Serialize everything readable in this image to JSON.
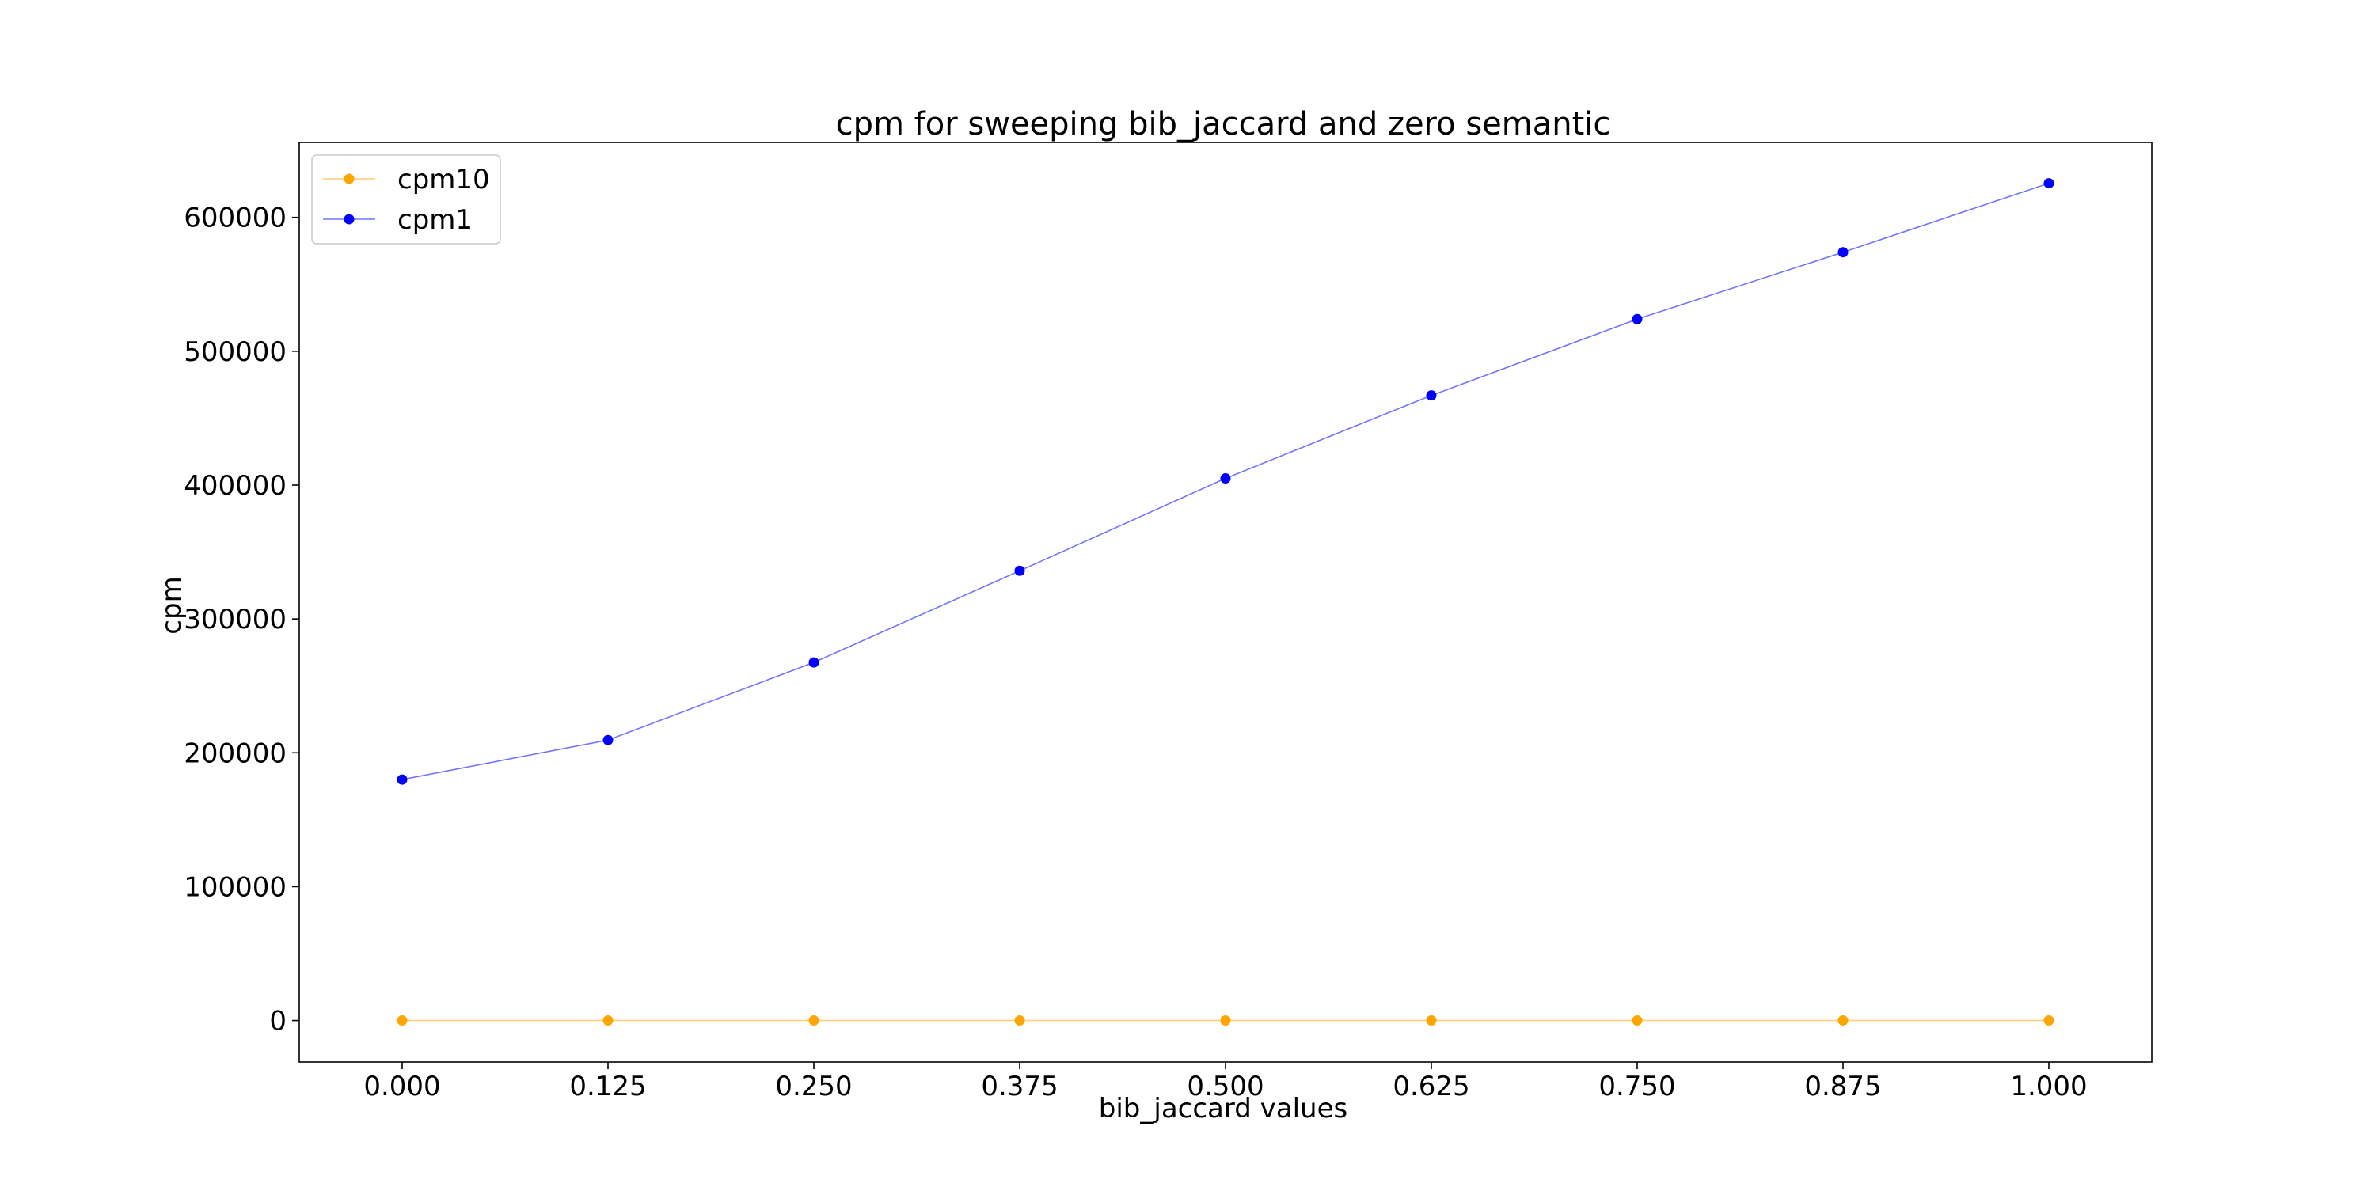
{
  "chart_data": {
    "type": "line",
    "title": "cpm for sweeping bib_jaccard and zero semantic",
    "xlabel": "bib_jaccard values",
    "ylabel": "cpm",
    "x": [
      0.0,
      0.125,
      0.25,
      0.375,
      0.5,
      0.625,
      0.75,
      0.875,
      1.0
    ],
    "xticks": [
      "0.000",
      "0.125",
      "0.250",
      "0.375",
      "0.500",
      "0.625",
      "0.750",
      "0.875",
      "1.000"
    ],
    "yticks": [
      "0",
      "100000",
      "200000",
      "300000",
      "400000",
      "500000",
      "600000"
    ],
    "ytick_values": [
      0,
      100000,
      200000,
      300000,
      400000,
      500000,
      600000
    ],
    "xlim": [
      -0.0625,
      1.0625
    ],
    "ylim": [
      -31000,
      656000
    ],
    "grid": false,
    "legend_position": "upper-left",
    "series": [
      {
        "name": "cpm10",
        "color": "#ffa500",
        "values": [
          10,
          10,
          10,
          10,
          10,
          10,
          10,
          10,
          10
        ]
      },
      {
        "name": "cpm1",
        "color": "#0000ff",
        "values": [
          180000,
          209500,
          267500,
          336000,
          405000,
          467000,
          524000,
          574000,
          625500
        ]
      }
    ]
  }
}
